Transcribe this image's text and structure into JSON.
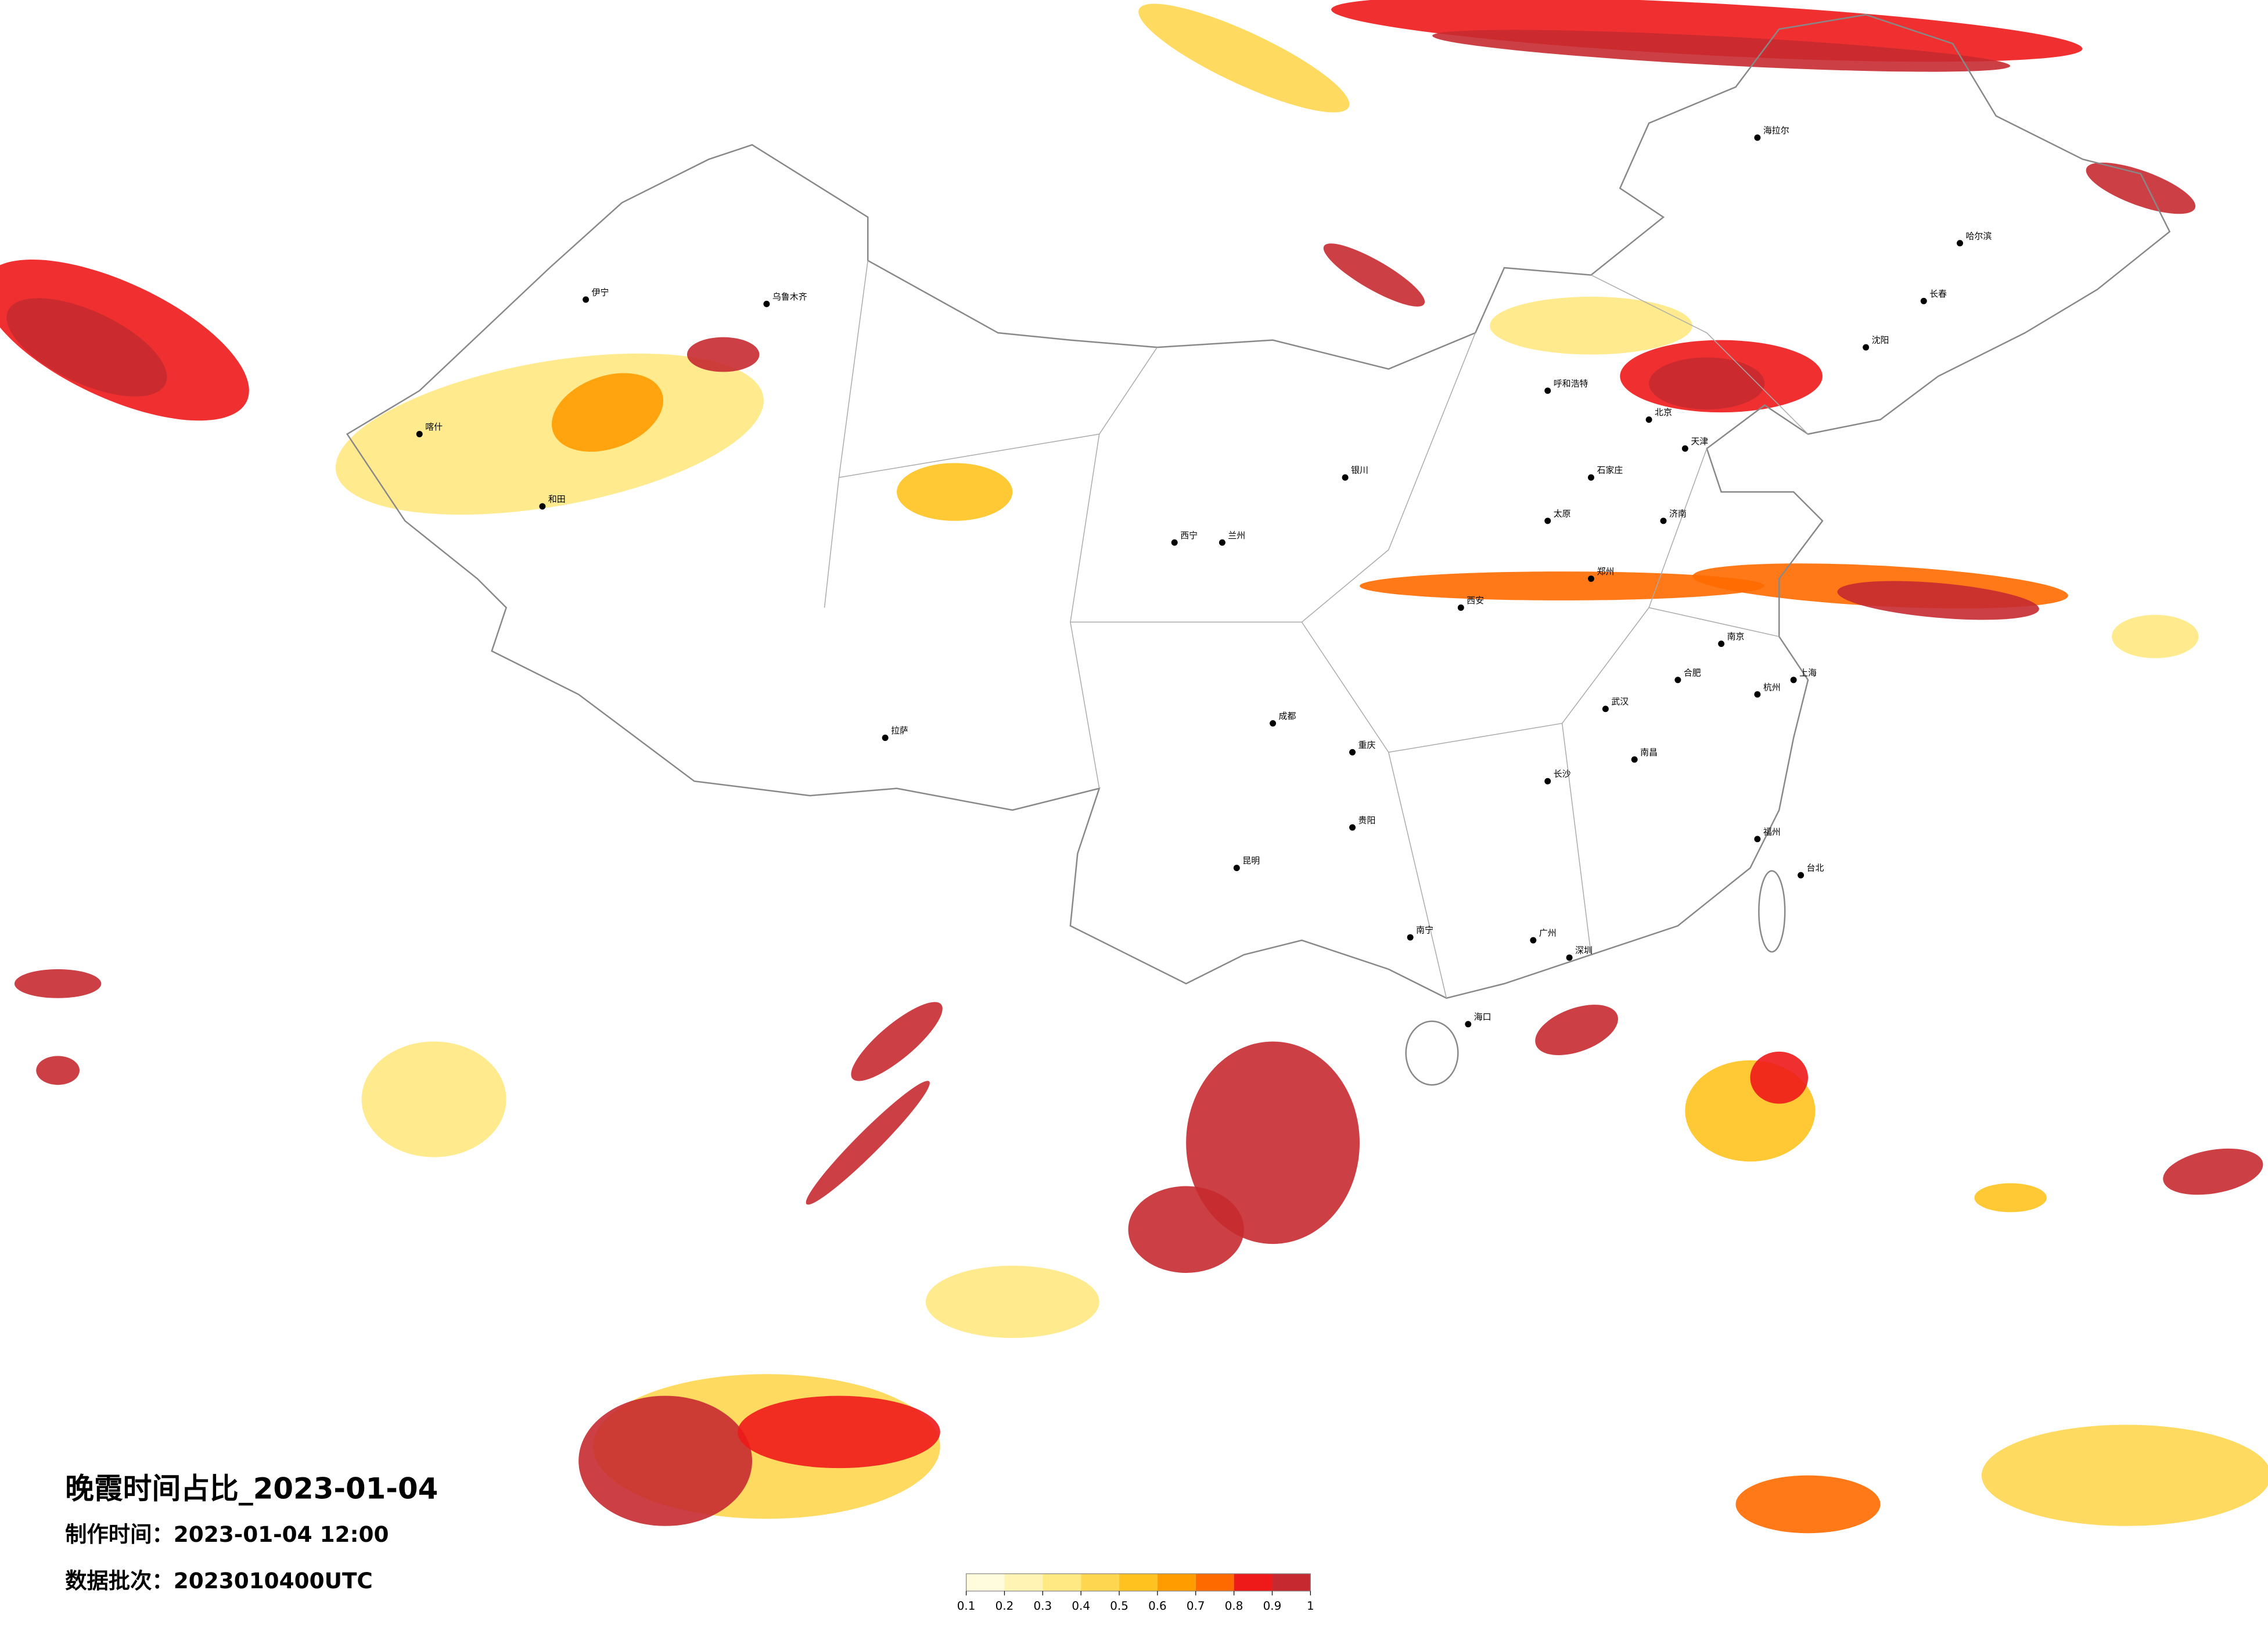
{
  "title": "晚霞时间占比_2023-01-04",
  "made_time": "制作时间：2023-01-04 12:00",
  "batch": "数据批次：2023010400UTC",
  "colorbar": {
    "ticks": [
      0.1,
      0.2,
      0.3,
      0.4,
      0.5,
      0.6,
      0.7,
      0.8,
      0.9,
      1
    ],
    "colors": [
      "#fffbdc",
      "#fff4b3",
      "#ffe982",
      "#ffd650",
      "#ffc21f",
      "#ff9c00",
      "#ff6a00",
      "#ee1a1a",
      "#c62a30"
    ]
  },
  "cities": [
    "哈尔滨",
    "长春",
    "沈阳",
    "海拉尔",
    "呼和浩特",
    "北京",
    "天津",
    "石家庄",
    "太原",
    "济南",
    "郑州",
    "西安",
    "银川",
    "兰州",
    "西宁",
    "乌鲁木齐",
    "伊宁",
    "喀什",
    "和田",
    "拉萨",
    "成都",
    "重庆",
    "贵阳",
    "昆明",
    "南宁",
    "海口",
    "长沙",
    "武汉",
    "南昌",
    "合肥",
    "南京",
    "杭州",
    "上海",
    "福州",
    "广州",
    "深圳",
    "台北"
  ]
}
